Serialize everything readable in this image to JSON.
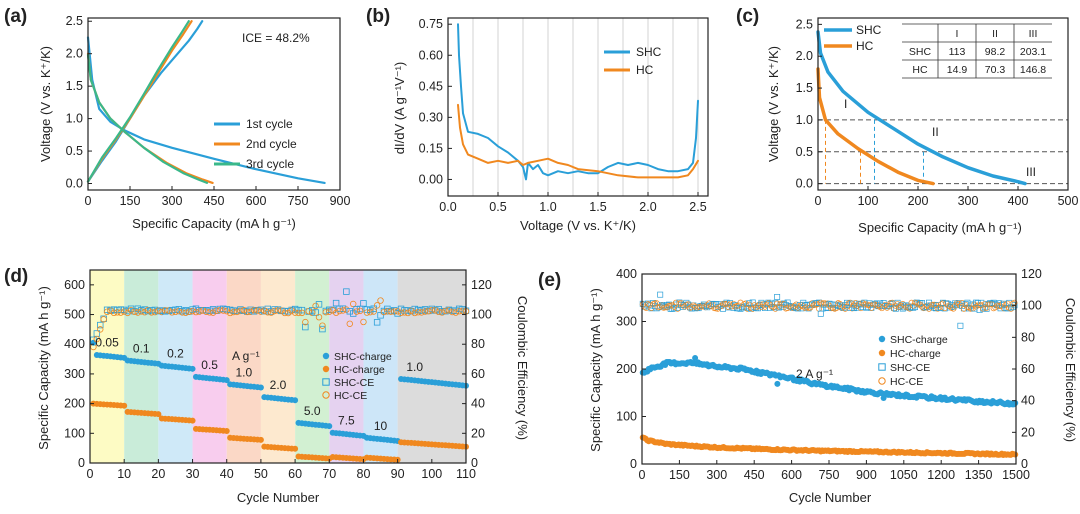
{
  "colors": {
    "blue": "#2a9fd8",
    "orange": "#f0881f",
    "green": "#3ab88a",
    "dash": "#555555",
    "gray": "#c8c8c8"
  },
  "panels": {
    "a": {
      "label": "(a)",
      "ice": "ICE = 48.2%"
    },
    "b": {
      "label": "(b)"
    },
    "c": {
      "label": "(c)"
    },
    "d": {
      "label": "(d)",
      "unit": "A g⁻¹",
      "rates": [
        "0.05",
        "0.1",
        "0.2",
        "0.5",
        "1.0",
        "2.0",
        "5.0",
        "7.5",
        "10",
        "1.0"
      ]
    },
    "e": {
      "label": "(e)",
      "rate": "2 A g⁻¹"
    }
  },
  "chart_data": [
    {
      "id": "a",
      "type": "line",
      "xlabel": "Specific Capacity (mA h g⁻¹)",
      "ylabel": "Voltage (V vs. K⁺/K)",
      "xlim": [
        0,
        900
      ],
      "ylim": [
        -0.1,
        2.55
      ],
      "xticks": [
        0,
        150,
        300,
        450,
        600,
        750,
        900
      ],
      "yticks": [
        0.0,
        0.5,
        1.0,
        1.5,
        2.0,
        2.5
      ],
      "xtick_labels": [
        "0",
        "150",
        "300",
        "450",
        "600",
        "750",
        "900"
      ],
      "ytick_labels": [
        "0.0",
        "0.5",
        "1.0",
        "1.5",
        "2.0",
        "2.5"
      ],
      "legend": [
        "1st cycle",
        "2nd cycle",
        "3rd cycle"
      ],
      "series": [
        {
          "name": "1st discharge",
          "color": "blue",
          "x": [
            0,
            15,
            40,
            80,
            130,
            200,
            300,
            450,
            600,
            750,
            845
          ],
          "y": [
            2.25,
            1.6,
            1.15,
            0.95,
            0.82,
            0.68,
            0.55,
            0.38,
            0.22,
            0.08,
            0.01
          ]
        },
        {
          "name": "1st charge",
          "color": "blue",
          "x": [
            0,
            50,
            100,
            150,
            200,
            260,
            320,
            360,
            390,
            408
          ],
          "y": [
            0.03,
            0.35,
            0.65,
            1.0,
            1.35,
            1.7,
            2.0,
            2.2,
            2.38,
            2.5
          ]
        },
        {
          "name": "2nd discharge",
          "color": "orange",
          "x": [
            0,
            10,
            40,
            80,
            130,
            200,
            280,
            350,
            410,
            445
          ],
          "y": [
            2.0,
            1.6,
            1.25,
            1.0,
            0.8,
            0.55,
            0.32,
            0.16,
            0.06,
            0.01
          ]
        },
        {
          "name": "2nd charge",
          "color": "orange",
          "x": [
            0,
            50,
            100,
            150,
            200,
            250,
            300,
            340,
            370
          ],
          "y": [
            0.03,
            0.38,
            0.68,
            1.0,
            1.35,
            1.7,
            2.05,
            2.3,
            2.5
          ]
        },
        {
          "name": "3rd discharge",
          "color": "green",
          "x": [
            0,
            10,
            40,
            80,
            130,
            200,
            270,
            340,
            395,
            425
          ],
          "y": [
            1.98,
            1.6,
            1.25,
            1.0,
            0.8,
            0.55,
            0.33,
            0.16,
            0.06,
            0.01
          ]
        },
        {
          "name": "3rd charge",
          "color": "green",
          "x": [
            0,
            50,
            100,
            150,
            200,
            250,
            300,
            335,
            360
          ],
          "y": [
            0.03,
            0.4,
            0.7,
            1.02,
            1.38,
            1.75,
            2.1,
            2.33,
            2.5
          ]
        }
      ]
    },
    {
      "id": "b",
      "type": "line",
      "xlabel": "Voltage (V vs. K⁺/K)",
      "ylabel": "dI/dV (A g⁻¹V⁻¹)",
      "xlim": [
        0,
        2.6
      ],
      "ylim": [
        -0.08,
        0.78
      ],
      "xticks": [
        0.0,
        0.5,
        1.0,
        1.5,
        2.0,
        2.5
      ],
      "yticks": [
        0.0,
        0.15,
        0.3,
        0.45,
        0.6,
        0.75
      ],
      "xtick_labels": [
        "0.0",
        "0.5",
        "1.0",
        "1.5",
        "2.0",
        "2.5"
      ],
      "ytick_labels": [
        "0.00",
        "0.15",
        "0.30",
        "0.45",
        "0.60",
        "0.75"
      ],
      "gridlines_x": [
        0.25,
        0.5,
        0.75,
        1.0,
        1.25,
        1.5,
        1.75,
        2.0,
        2.25,
        2.5
      ],
      "legend": [
        "SHC",
        "HC"
      ],
      "series": [
        {
          "name": "SHC",
          "color": "blue",
          "x": [
            0.1,
            0.11,
            0.13,
            0.15,
            0.2,
            0.3,
            0.4,
            0.5,
            0.6,
            0.7,
            0.75,
            0.78,
            0.8,
            0.85,
            0.9,
            0.95,
            1.0,
            1.1,
            1.2,
            1.3,
            1.4,
            1.5,
            1.6,
            1.7,
            1.8,
            1.9,
            2.0,
            2.1,
            2.2,
            2.3,
            2.4,
            2.45,
            2.48,
            2.5
          ],
          "y": [
            0.75,
            0.6,
            0.45,
            0.32,
            0.23,
            0.22,
            0.2,
            0.16,
            0.13,
            0.09,
            0.06,
            0.0,
            0.08,
            0.05,
            0.07,
            0.03,
            0.02,
            0.04,
            0.03,
            0.04,
            0.03,
            0.03,
            0.06,
            0.08,
            0.07,
            0.08,
            0.07,
            0.05,
            0.04,
            0.04,
            0.05,
            0.08,
            0.2,
            0.38
          ]
        },
        {
          "name": "HC",
          "color": "orange",
          "x": [
            0.1,
            0.12,
            0.15,
            0.2,
            0.3,
            0.4,
            0.5,
            0.6,
            0.7,
            0.75,
            0.8,
            0.9,
            1.0,
            1.1,
            1.2,
            1.3,
            1.5,
            1.7,
            1.9,
            2.1,
            2.3,
            2.4,
            2.45,
            2.5
          ],
          "y": [
            0.36,
            0.25,
            0.17,
            0.12,
            0.1,
            0.08,
            0.09,
            0.08,
            0.09,
            0.07,
            0.08,
            0.09,
            0.1,
            0.08,
            0.07,
            0.05,
            0.04,
            0.02,
            0.01,
            0.01,
            0.01,
            0.02,
            0.05,
            0.09
          ]
        }
      ]
    },
    {
      "id": "c",
      "type": "line",
      "xlabel": "Specific Capacity (mA h g⁻¹)",
      "ylabel": "Voltage (V vs. K⁺/K)",
      "xlim": [
        0,
        500
      ],
      "ylim": [
        -0.1,
        2.6
      ],
      "xticks": [
        0,
        100,
        200,
        300,
        400,
        500
      ],
      "yticks": [
        0.0,
        0.5,
        1.0,
        1.5,
        2.0,
        2.5
      ],
      "xtick_labels": [
        "0",
        "100",
        "200",
        "300",
        "400",
        "500"
      ],
      "ytick_labels": [
        "0.0",
        "0.5",
        "1.0",
        "1.5",
        "2.0",
        "2.5"
      ],
      "legend": [
        "SHC",
        "HC"
      ],
      "hlines": [
        1.0,
        0.5,
        0.0
      ],
      "region_labels": [
        "I",
        "II",
        "III"
      ],
      "table": {
        "header": [
          "",
          "I",
          "II",
          "III"
        ],
        "rows": [
          [
            "SHC",
            "113",
            "98.2",
            "203.1"
          ],
          [
            "HC",
            "14.9",
            "70.3",
            "146.8"
          ]
        ]
      },
      "series": [
        {
          "name": "SHC",
          "color": "blue",
          "x": [
            0,
            5,
            20,
            50,
            100,
            150,
            200,
            250,
            300,
            350,
            400,
            414
          ],
          "y": [
            2.38,
            2.05,
            1.75,
            1.45,
            1.12,
            0.87,
            0.62,
            0.42,
            0.25,
            0.12,
            0.03,
            0.0
          ]
        },
        {
          "name": "HC",
          "color": "orange",
          "x": [
            0,
            3,
            15,
            40,
            80,
            120,
            160,
            200,
            230
          ],
          "y": [
            1.8,
            1.35,
            1.0,
            0.78,
            0.55,
            0.35,
            0.18,
            0.05,
            0.0
          ]
        }
      ],
      "markers": [
        {
          "series": "SHC",
          "x": 113,
          "y": 1.0
        },
        {
          "series": "SHC",
          "x": 211,
          "y": 0.5
        },
        {
          "series": "HC",
          "x": 15,
          "y": 1.0
        },
        {
          "series": "HC",
          "x": 85,
          "y": 0.5
        }
      ]
    },
    {
      "id": "d",
      "type": "scatter",
      "xlabel": "Cycle Number",
      "ylabel": "Specific Capacity (mA h g⁻¹)",
      "y2label": "Coulombic Efficiency (%)",
      "xlim": [
        0,
        110
      ],
      "ylim": [
        0,
        650
      ],
      "y2lim": [
        0,
        130
      ],
      "xticks": [
        0,
        10,
        20,
        30,
        40,
        50,
        60,
        70,
        80,
        90,
        100,
        110
      ],
      "yticks": [
        0,
        100,
        200,
        300,
        400,
        500,
        600
      ],
      "y2ticks": [
        0,
        20,
        40,
        60,
        80,
        100,
        120
      ],
      "xtick_labels": [
        "0",
        "10",
        "20",
        "30",
        "40",
        "50",
        "60",
        "70",
        "80",
        "90",
        "100",
        "110"
      ],
      "ytick_labels": [
        "0",
        "100",
        "200",
        "300",
        "400",
        "500",
        "600"
      ],
      "y2tick_labels": [
        "0",
        "20",
        "40",
        "60",
        "80",
        "100",
        "120"
      ],
      "legend": [
        "SHC-charge",
        "HC-charge",
        "SHC-CE",
        "HC-CE"
      ],
      "band_colors": [
        "#fdfbc4",
        "#c9ecd9",
        "#cfe9f8",
        "#f8cdee",
        "#fbd8c6",
        "#fde9cf",
        "#d2f0d2",
        "#e5d2f0",
        "#cde6f8",
        "#dcdcdc"
      ],
      "shc_charge_levels": [
        365,
        345,
        328,
        290,
        265,
        222,
        135,
        102,
        85,
        283
      ],
      "hc_charge_levels": [
        200,
        172,
        150,
        115,
        85,
        55,
        22,
        20,
        18,
        70
      ],
      "ce_level": 103
    },
    {
      "id": "e",
      "type": "scatter",
      "xlabel": "Cycle Number",
      "ylabel": "Specific Capacity (mA h g⁻¹)",
      "y2label": "Coulombic Efficiency (%)",
      "xlim": [
        0,
        1500
      ],
      "ylim": [
        0,
        400
      ],
      "y2lim": [
        0,
        120
      ],
      "xticks": [
        0,
        150,
        300,
        450,
        600,
        750,
        900,
        1050,
        1200,
        1350,
        1500
      ],
      "yticks": [
        0,
        100,
        200,
        300,
        400
      ],
      "y2ticks": [
        0,
        20,
        40,
        60,
        80,
        100,
        120
      ],
      "xtick_labels": [
        "0",
        "150",
        "300",
        "450",
        "600",
        "750",
        "900",
        "1050",
        "1200",
        "1350",
        "1500"
      ],
      "ytick_labels": [
        "0",
        "100",
        "200",
        "300",
        "400"
      ],
      "y2tick_labels": [
        "0",
        "20",
        "40",
        "60",
        "80",
        "100",
        "120"
      ],
      "legend": [
        "SHC-charge",
        "HC-charge",
        "SHC-CE",
        "HC-CE"
      ],
      "shc_charge": {
        "x": [
          0,
          30,
          100,
          200,
          300,
          400,
          500,
          600,
          700,
          800,
          900,
          1000,
          1100,
          1200,
          1300,
          1400,
          1500
        ],
        "y": [
          190,
          200,
          212,
          213,
          205,
          200,
          190,
          180,
          168,
          160,
          152,
          146,
          142,
          138,
          134,
          130,
          127
        ]
      },
      "hc_charge": {
        "x": [
          0,
          20,
          100,
          200,
          300,
          500,
          700,
          900,
          1100,
          1300,
          1500
        ],
        "y": [
          57,
          50,
          42,
          38,
          35,
          31,
          28,
          26,
          24,
          22,
          20
        ]
      },
      "ce_level": 100
    }
  ]
}
